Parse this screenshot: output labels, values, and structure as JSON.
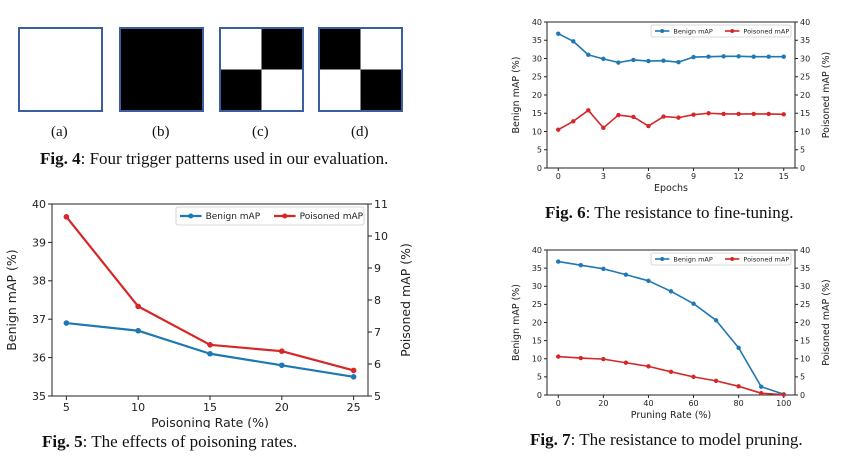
{
  "fig4": {
    "sublabels": [
      "(a)",
      "(b)",
      "(c)",
      "(d)"
    ],
    "caption_prefix": "Fig. 4",
    "caption_text": ": Four trigger patterns used in our evaluation."
  },
  "colors": {
    "benign": "#1f77b4",
    "poisoned": "#d62728"
  },
  "chart_data": [
    {
      "id": "fig5",
      "type": "line",
      "caption_prefix": "Fig. 5",
      "caption_text": ": The effects of poisoning rates.",
      "xlabel": "Poisoning Rate (%)",
      "ylabel_left": "Benign mAP (%)",
      "ylabel_right": "Poisoned mAP (%)",
      "x": [
        5,
        10,
        15,
        20,
        25
      ],
      "xlim": [
        4,
        26
      ],
      "xticks": [
        5,
        10,
        15,
        20,
        25
      ],
      "ylim_left": [
        35,
        40
      ],
      "yticks_left": [
        35,
        36,
        37,
        38,
        39,
        40
      ],
      "ylim_right": [
        5,
        11
      ],
      "yticks_right": [
        5,
        6,
        7,
        8,
        9,
        10,
        11
      ],
      "legend_position": "top-right",
      "series": [
        {
          "name": "Benign mAP",
          "axis": "left",
          "color": "#1f77b4",
          "values": [
            36.9,
            36.7,
            36.1,
            35.8,
            35.5
          ]
        },
        {
          "name": "Poisoned mAP",
          "axis": "right",
          "color": "#d62728",
          "values": [
            10.6,
            7.8,
            6.6,
            6.4,
            5.8
          ]
        }
      ]
    },
    {
      "id": "fig6",
      "type": "line",
      "caption_prefix": "Fig. 6",
      "caption_text": ": The resistance to fine-tuning.",
      "xlabel": "Epochs",
      "ylabel_left": "Benign mAP (%)",
      "ylabel_right": "Poisoned mAP (%)",
      "x": [
        0,
        1,
        2,
        3,
        4,
        5,
        6,
        7,
        8,
        9,
        10,
        11,
        12,
        13,
        14,
        15
      ],
      "xlim": [
        -0.75,
        15.75
      ],
      "xticks": [
        0,
        3,
        6,
        9,
        12,
        15
      ],
      "ylim_left": [
        0,
        40
      ],
      "yticks_left": [
        0,
        5,
        10,
        15,
        20,
        25,
        30,
        35,
        40
      ],
      "ylim_right": [
        0,
        40
      ],
      "yticks_right": [
        0,
        5,
        10,
        15,
        20,
        25,
        30,
        35,
        40
      ],
      "legend_position": "top-right",
      "series": [
        {
          "name": "Benign mAP",
          "axis": "left",
          "color": "#1f77b4",
          "values": [
            36.8,
            34.7,
            31.0,
            29.9,
            28.9,
            29.6,
            29.3,
            29.4,
            29.0,
            30.4,
            30.5,
            30.6,
            30.6,
            30.5,
            30.5,
            30.5
          ]
        },
        {
          "name": "Poisoned mAP",
          "axis": "right",
          "color": "#d62728",
          "values": [
            10.5,
            12.8,
            15.8,
            11.0,
            14.5,
            14.0,
            11.5,
            14.1,
            13.8,
            14.6,
            15.0,
            14.8,
            14.8,
            14.8,
            14.8,
            14.7
          ]
        }
      ]
    },
    {
      "id": "fig7",
      "type": "line",
      "caption_prefix": "Fig. 7",
      "caption_text": ": The resistance to model pruning.",
      "xlabel": "Pruning Rate (%)",
      "ylabel_left": "Benign mAP (%)",
      "ylabel_right": "Poisoned mAP (%)",
      "x": [
        0,
        10,
        20,
        30,
        40,
        50,
        60,
        70,
        80,
        90,
        100
      ],
      "xlim": [
        -5,
        105
      ],
      "xticks": [
        0,
        20,
        40,
        60,
        80,
        100
      ],
      "ylim_left": [
        0,
        40
      ],
      "yticks_left": [
        0,
        5,
        10,
        15,
        20,
        25,
        30,
        35,
        40
      ],
      "ylim_right": [
        0,
        40
      ],
      "yticks_right": [
        0,
        5,
        10,
        15,
        20,
        25,
        30,
        35,
        40
      ],
      "legend_position": "top-right",
      "series": [
        {
          "name": "Benign mAP",
          "axis": "left",
          "color": "#1f77b4",
          "values": [
            36.8,
            35.8,
            34.8,
            33.2,
            31.5,
            28.6,
            25.2,
            20.6,
            13.0,
            2.3,
            0.2
          ]
        },
        {
          "name": "Poisoned mAP",
          "axis": "right",
          "color": "#d62728",
          "values": [
            10.6,
            10.2,
            9.9,
            8.9,
            7.9,
            6.4,
            5.0,
            3.9,
            2.4,
            0.5,
            0.1
          ]
        }
      ]
    }
  ]
}
